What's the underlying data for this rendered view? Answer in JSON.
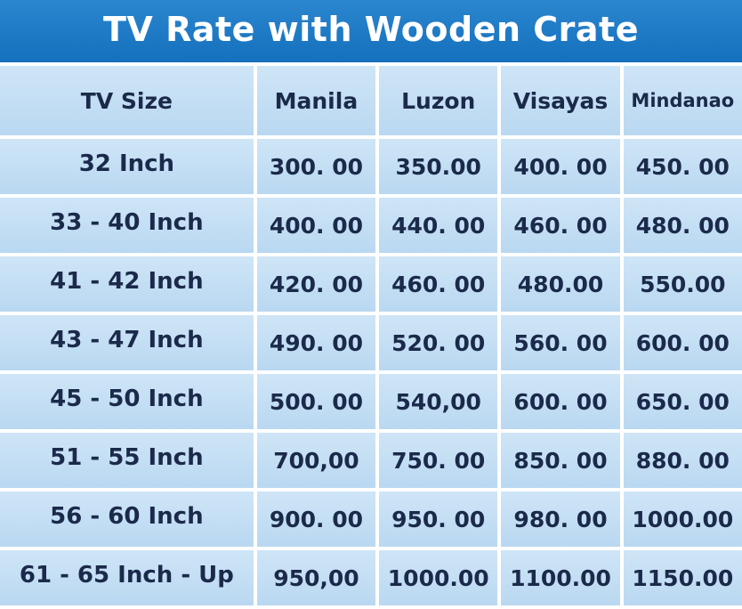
{
  "title": "TV Rate with Wooden Crate",
  "table": {
    "headers": [
      "TV Size",
      "Manila",
      "Luzon",
      "Visayas",
      "Mindanao"
    ],
    "rows": [
      {
        "size": "32 Inch",
        "manila": "300. 00",
        "luzon": "350.00",
        "visayas": "400. 00",
        "mindanao": "450. 00"
      },
      {
        "size": "33 - 40 Inch",
        "manila": "400. 00",
        "luzon": "440. 00",
        "visayas": "460. 00",
        "mindanao": "480. 00"
      },
      {
        "size": "41 - 42 Inch",
        "manila": "420. 00",
        "luzon": "460. 00",
        "visayas": "480.00",
        "mindanao": "550.00"
      },
      {
        "size": "43 - 47 Inch",
        "manila": "490. 00",
        "luzon": "520. 00",
        "visayas": "560. 00",
        "mindanao": "600. 00"
      },
      {
        "size": "45 - 50 Inch",
        "manila": "500. 00",
        "luzon": "540,00",
        "visayas": "600. 00",
        "mindanao": "650. 00"
      },
      {
        "size": "51 - 55 Inch",
        "manila": "700,00",
        "luzon": "750. 00",
        "visayas": "850. 00",
        "mindanao": "880. 00"
      },
      {
        "size": "56 - 60 Inch",
        "manila": "900. 00",
        "luzon": "950. 00",
        "visayas": "980. 00",
        "mindanao": "1000.00"
      },
      {
        "size": "61 - 65 Inch - Up",
        "manila": "950,00",
        "luzon": "1000.00",
        "visayas": "1100.00",
        "mindanao": "1150.00"
      }
    ]
  },
  "colors": {
    "title_bar": "#1a74c2",
    "cell_bg": "#c4def4",
    "text": "#1b2a4a"
  }
}
